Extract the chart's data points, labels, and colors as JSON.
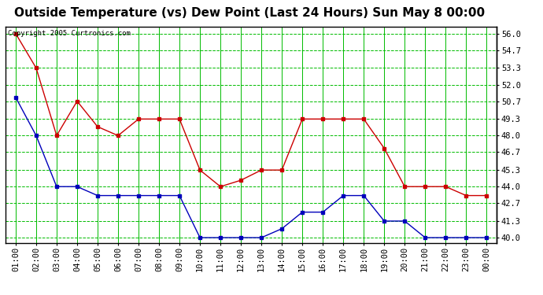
{
  "title": "Outside Temperature (vs) Dew Point (Last 24 Hours) Sun May 8 00:00",
  "copyright": "Copyright 2005 Curtronics.com",
  "x_labels": [
    "01:00",
    "02:00",
    "03:00",
    "04:00",
    "05:00",
    "06:00",
    "07:00",
    "08:00",
    "09:00",
    "10:00",
    "11:00",
    "12:00",
    "13:00",
    "14:00",
    "15:00",
    "16:00",
    "17:00",
    "18:00",
    "19:00",
    "20:00",
    "21:00",
    "22:00",
    "23:00",
    "00:00"
  ],
  "temp_red": [
    56.0,
    53.3,
    48.0,
    50.7,
    48.7,
    48.0,
    49.3,
    49.3,
    49.3,
    45.3,
    44.0,
    44.5,
    45.3,
    45.3,
    49.3,
    49.3,
    49.3,
    49.3,
    47.0,
    44.0,
    44.0,
    44.0,
    43.3,
    43.3
  ],
  "dew_blue": [
    51.0,
    48.0,
    44.0,
    44.0,
    43.3,
    43.3,
    43.3,
    43.3,
    43.3,
    40.0,
    40.0,
    40.0,
    40.0,
    40.7,
    42.0,
    42.0,
    43.3,
    43.3,
    41.3,
    41.3,
    40.0,
    40.0,
    40.0,
    40.0
  ],
  "red_color": "#cc0000",
  "blue_color": "#0000bb",
  "bg_color": "#ffffff",
  "plot_bg": "#ffffff",
  "grid_h_color": "#00bb00",
  "grid_v_color": "#00bb00",
  "border_color": "#000000",
  "y_ticks": [
    40.0,
    41.3,
    42.7,
    44.0,
    45.3,
    46.7,
    48.0,
    49.3,
    50.7,
    52.0,
    53.3,
    54.7,
    56.0
  ],
  "ylim": [
    39.55,
    56.55
  ],
  "title_fontsize": 11,
  "tick_fontsize": 7.5,
  "copyright_fontsize": 6.5,
  "marker_size": 2.5,
  "line_width": 1.0
}
